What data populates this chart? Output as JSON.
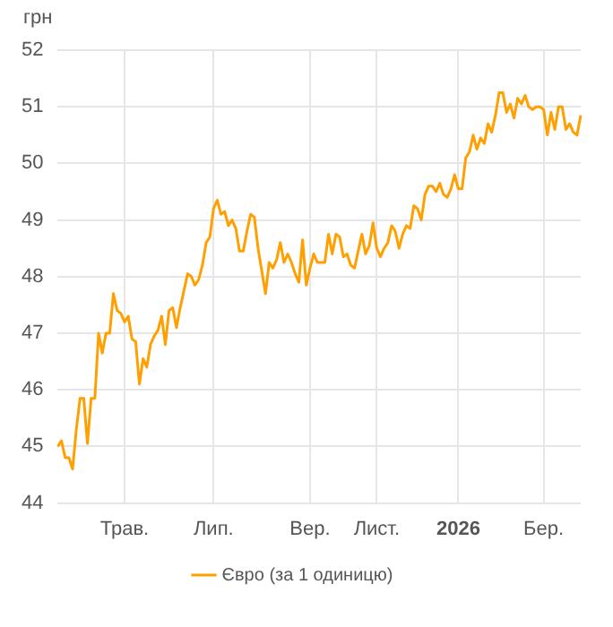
{
  "chart_data": {
    "type": "line",
    "ylabel": "грн",
    "legend": "bottom",
    "grid": true,
    "marker": "none",
    "line_style": "solid",
    "categories": [
      null,
      null,
      null,
      null,
      null,
      null,
      null,
      null,
      null,
      null,
      null,
      null,
      null,
      null,
      null,
      null,
      null,
      null,
      "Трав.",
      null,
      null,
      null,
      null,
      null,
      null,
      null,
      null,
      null,
      null,
      null,
      null,
      null,
      null,
      null,
      null,
      null,
      null,
      null,
      null,
      null,
      null,
      null,
      "Лип.",
      null,
      null,
      null,
      null,
      null,
      null,
      null,
      null,
      null,
      null,
      null,
      null,
      null,
      null,
      null,
      null,
      null,
      null,
      null,
      null,
      null,
      null,
      null,
      null,
      null,
      "Вер.",
      null,
      null,
      null,
      null,
      null,
      null,
      null,
      null,
      null,
      null,
      null,
      null,
      null,
      null,
      null,
      null,
      null,
      "Лист.",
      null,
      null,
      null,
      null,
      null,
      null,
      null,
      null,
      null,
      null,
      null,
      null,
      null,
      null,
      null,
      null,
      null,
      null,
      null,
      null,
      null,
      "2026",
      null,
      null,
      null,
      null,
      null,
      null,
      null,
      null,
      null,
      null,
      null,
      null,
      null,
      null,
      null,
      null,
      null,
      null,
      null,
      null,
      null,
      null,
      "Бер.",
      null,
      null,
      null,
      null,
      null,
      null,
      null,
      null,
      null,
      null
    ],
    "ylim": [
      44,
      52
    ],
    "yticks": [
      44,
      45,
      46,
      47,
      48,
      49,
      50,
      51,
      52
    ],
    "series": [
      {
        "name": "Євро (за 1 одиницю)",
        "color": "#ffa000",
        "values": [
          45.0,
          45.1,
          44.8,
          44.8,
          44.6,
          45.3,
          45.85,
          45.85,
          45.05,
          45.85,
          45.85,
          47.0,
          46.65,
          47.0,
          47.0,
          47.7,
          47.4,
          47.35,
          47.2,
          47.3,
          46.9,
          46.85,
          46.1,
          46.55,
          46.4,
          46.8,
          46.95,
          47.05,
          47.3,
          46.8,
          47.4,
          47.45,
          47.1,
          47.45,
          47.75,
          48.05,
          48.0,
          47.85,
          47.95,
          48.2,
          48.6,
          48.7,
          49.2,
          49.35,
          49.1,
          49.15,
          48.9,
          49.0,
          48.85,
          48.45,
          48.45,
          48.8,
          49.1,
          49.05,
          48.5,
          48.1,
          47.7,
          48.25,
          48.15,
          48.3,
          48.6,
          48.25,
          48.4,
          48.25,
          48.05,
          47.9,
          48.65,
          47.85,
          48.15,
          48.4,
          48.25,
          48.25,
          48.25,
          48.75,
          48.4,
          48.75,
          48.7,
          48.35,
          48.4,
          48.2,
          48.15,
          48.45,
          48.75,
          48.4,
          48.55,
          48.95,
          48.5,
          48.35,
          48.5,
          48.6,
          48.9,
          48.8,
          48.5,
          48.75,
          48.9,
          48.85,
          49.25,
          49.2,
          49.0,
          49.45,
          49.6,
          49.6,
          49.5,
          49.65,
          49.45,
          49.4,
          49.55,
          49.8,
          49.55,
          49.55,
          50.1,
          50.2,
          50.5,
          50.25,
          50.45,
          50.35,
          50.7,
          50.55,
          50.85,
          51.25,
          51.25,
          50.9,
          51.05,
          50.8,
          51.15,
          51.05,
          51.2,
          51.0,
          50.95,
          51.0,
          51.0,
          50.95,
          50.5,
          50.9,
          50.6,
          51.0,
          51.0,
          50.6,
          50.7,
          50.55,
          50.5,
          50.85
        ]
      }
    ]
  }
}
